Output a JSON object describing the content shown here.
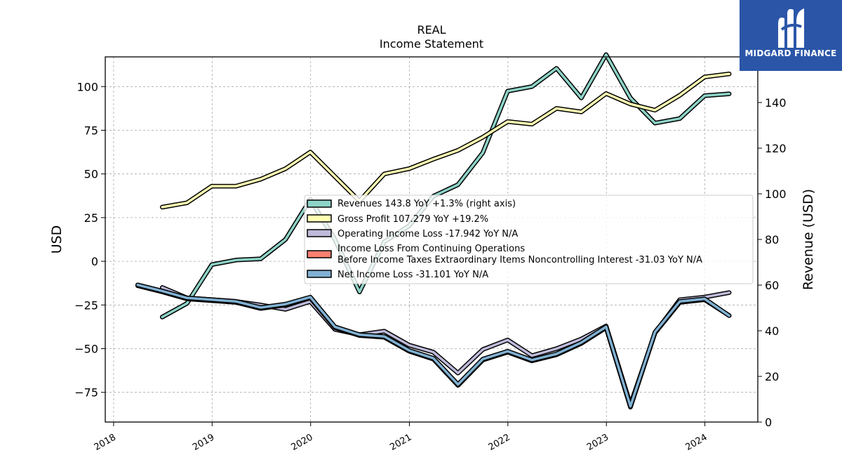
{
  "chart_data": {
    "type": "line",
    "title": "REAL",
    "subtitle": "Income Statement",
    "ylabel": "USD",
    "y2label": "Revenue (USD)",
    "ylim": [
      -92,
      117
    ],
    "y2lim": [
      0,
      160
    ],
    "xlim": [
      "2017-12-01",
      "2024-07-15"
    ],
    "yticks": [
      -75,
      -50,
      -25,
      0,
      25,
      50,
      75,
      100
    ],
    "y2ticks": [
      0,
      20,
      40,
      60,
      80,
      100,
      120,
      140,
      160
    ],
    "xticks": [
      {
        "date": "2018-01-01",
        "label": "2018"
      },
      {
        "date": "2019-01-01",
        "label": "2019"
      },
      {
        "date": "2020-01-01",
        "label": "2020"
      },
      {
        "date": "2021-01-01",
        "label": "2021"
      },
      {
        "date": "2022-01-01",
        "label": "2022"
      },
      {
        "date": "2023-01-01",
        "label": "2023"
      },
      {
        "date": "2024-01-01",
        "label": "2024"
      }
    ],
    "grid": true,
    "legend_position": "center-right",
    "series": [
      {
        "name": "Revenues",
        "legend": "Revenues  143.8 YoY +1.3% (right axis)",
        "axis": "right",
        "color": "#8dd3c7",
        "points": [
          [
            "2018-06-30",
            46
          ],
          [
            "2018-09-30",
            52
          ],
          [
            "2018-12-31",
            69
          ],
          [
            "2019-03-31",
            71
          ],
          [
            "2019-06-30",
            71.5
          ],
          [
            "2019-09-30",
            80
          ],
          [
            "2019-12-31",
            97.5
          ],
          [
            "2020-03-31",
            80
          ],
          [
            "2020-06-30",
            57
          ],
          [
            "2020-09-30",
            79
          ],
          [
            "2020-12-31",
            86
          ],
          [
            "2021-03-31",
            99
          ],
          [
            "2021-06-30",
            104
          ],
          [
            "2021-09-30",
            118
          ],
          [
            "2021-12-31",
            145
          ],
          [
            "2022-03-31",
            147
          ],
          [
            "2022-06-30",
            155
          ],
          [
            "2022-09-30",
            142
          ],
          [
            "2022-12-31",
            161
          ],
          [
            "2023-03-31",
            142
          ],
          [
            "2023-06-30",
            131
          ],
          [
            "2023-09-30",
            133
          ],
          [
            "2023-12-31",
            143
          ],
          [
            "2024-03-31",
            143.8
          ]
        ]
      },
      {
        "name": "Gross Profit",
        "legend": "Gross Profit  107.279 YoY +19.2%",
        "axis": "left",
        "color": "#ffffb3",
        "points": [
          [
            "2018-06-30",
            31
          ],
          [
            "2018-09-30",
            33.5
          ],
          [
            "2018-12-31",
            43
          ],
          [
            "2019-03-31",
            43
          ],
          [
            "2019-06-30",
            47
          ],
          [
            "2019-09-30",
            53
          ],
          [
            "2019-12-31",
            62.5
          ],
          [
            "2020-03-31",
            48.5
          ],
          [
            "2020-06-30",
            34.5
          ],
          [
            "2020-09-30",
            50
          ],
          [
            "2020-12-31",
            53
          ],
          [
            "2021-03-31",
            58.5
          ],
          [
            "2021-06-30",
            63.5
          ],
          [
            "2021-09-30",
            71
          ],
          [
            "2021-12-31",
            80
          ],
          [
            "2022-03-31",
            78.5
          ],
          [
            "2022-06-30",
            87.5
          ],
          [
            "2022-09-30",
            85.5
          ],
          [
            "2022-12-31",
            96
          ],
          [
            "2023-03-31",
            90
          ],
          [
            "2023-06-30",
            86.5
          ],
          [
            "2023-09-30",
            95
          ],
          [
            "2023-12-31",
            105.5
          ],
          [
            "2024-03-31",
            107.279
          ]
        ]
      },
      {
        "name": "Operating Income Loss",
        "legend": "Operating Income Loss  -17.942 YoY N/A",
        "axis": "left",
        "color": "#bebada",
        "points": [
          [
            "2018-06-30",
            -15
          ],
          [
            "2018-09-30",
            -21
          ],
          [
            "2018-12-31",
            -22
          ],
          [
            "2019-03-31",
            -23
          ],
          [
            "2019-06-30",
            -25
          ],
          [
            "2019-09-30",
            -27.5
          ],
          [
            "2019-12-31",
            -23
          ],
          [
            "2020-03-31",
            -39
          ],
          [
            "2020-06-30",
            -42
          ],
          [
            "2020-09-30",
            -40
          ],
          [
            "2020-12-31",
            -48
          ],
          [
            "2021-03-31",
            -52
          ],
          [
            "2021-06-30",
            -64
          ],
          [
            "2021-09-30",
            -50.5
          ],
          [
            "2021-12-31",
            -45
          ],
          [
            "2022-03-31",
            -54
          ],
          [
            "2022-06-30",
            -50
          ],
          [
            "2022-09-30",
            -44.5
          ],
          [
            "2022-12-31",
            -37
          ],
          [
            "2023-03-31",
            -82
          ],
          [
            "2023-06-30",
            -41
          ],
          [
            "2023-09-30",
            -22
          ],
          [
            "2023-12-31",
            -20.5
          ],
          [
            "2024-03-31",
            -17.942
          ]
        ]
      },
      {
        "name": "Income Loss From Continuing Operations Before Income Taxes Extraordinary Items Noncontrolling Interest",
        "legend_line1": "Income Loss From Continuing Operations",
        "legend_line2": "Before Income Taxes Extraordinary Items Noncontrolling Interest  -31.03 YoY N/A",
        "axis": "left",
        "color": "#fb8072",
        "points": [
          [
            "2018-03-31",
            -14
          ],
          [
            "2018-06-30",
            -17.5
          ],
          [
            "2018-09-30",
            -21.5
          ],
          [
            "2018-12-31",
            -22.5
          ],
          [
            "2019-03-31",
            -23.5
          ],
          [
            "2019-06-30",
            -27
          ],
          [
            "2019-09-30",
            -25
          ],
          [
            "2019-12-31",
            -21
          ],
          [
            "2020-03-31",
            -38
          ],
          [
            "2020-06-30",
            -42.5
          ],
          [
            "2020-09-30",
            -43.5
          ],
          [
            "2020-12-31",
            -51.5
          ],
          [
            "2021-03-31",
            -56
          ],
          [
            "2021-06-30",
            -71
          ],
          [
            "2021-09-30",
            -56.5
          ],
          [
            "2021-12-31",
            -52
          ],
          [
            "2022-03-31",
            -57
          ],
          [
            "2022-06-30",
            -53.5
          ],
          [
            "2022-09-30",
            -47
          ],
          [
            "2022-12-31",
            -38
          ],
          [
            "2023-03-31",
            -83.5
          ],
          [
            "2023-06-30",
            -41
          ],
          [
            "2023-09-30",
            -23.5
          ],
          [
            "2023-12-31",
            -22
          ],
          [
            "2024-03-31",
            -31.03
          ]
        ]
      },
      {
        "name": "Net Income Loss",
        "legend": "Net Income Loss  -31.101 YoY N/A",
        "axis": "left",
        "color": "#80b1d3",
        "points": [
          [
            "2018-03-31",
            -13.5
          ],
          [
            "2018-06-30",
            -17
          ],
          [
            "2018-09-30",
            -21
          ],
          [
            "2018-12-31",
            -22
          ],
          [
            "2019-03-31",
            -23
          ],
          [
            "2019-06-30",
            -26.5
          ],
          [
            "2019-09-30",
            -24.5
          ],
          [
            "2019-12-31",
            -20.5
          ],
          [
            "2020-03-31",
            -37.5
          ],
          [
            "2020-06-30",
            -42
          ],
          [
            "2020-09-30",
            -43
          ],
          [
            "2020-12-31",
            -51
          ],
          [
            "2021-03-31",
            -55.5
          ],
          [
            "2021-06-30",
            -70.5
          ],
          [
            "2021-09-30",
            -56
          ],
          [
            "2021-12-31",
            -51.5
          ],
          [
            "2022-03-31",
            -56.5
          ],
          [
            "2022-06-30",
            -53
          ],
          [
            "2022-09-30",
            -46.5
          ],
          [
            "2022-12-31",
            -37.5
          ],
          [
            "2023-03-31",
            -83
          ],
          [
            "2023-06-30",
            -40.5
          ],
          [
            "2023-09-30",
            -23
          ],
          [
            "2023-12-31",
            -21.5
          ],
          [
            "2024-03-31",
            -31.101
          ]
        ]
      }
    ]
  },
  "logo": {
    "text": "MIDGARD FINANCE",
    "color": "#2b56a8"
  }
}
